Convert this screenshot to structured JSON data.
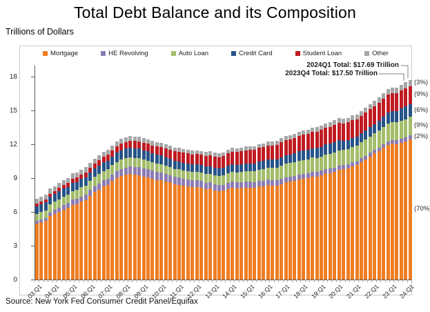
{
  "title": "Total Debt Balance and its Composition",
  "units_label": "Trillions of Dollars",
  "source": "Source: New York Fed Consumer Credit Panel/Equifax",
  "annotations": {
    "latest": "2024Q1 Total: $17.69 Trillion",
    "previous": "2023Q4 Total: $17.50 Trillion"
  },
  "chart_data": {
    "type": "bar",
    "stacked": true,
    "title": "Total Debt Balance and its Composition",
    "ylabel": "Trillions of Dollars",
    "ylim": [
      0,
      18
    ],
    "yticks": [
      0,
      3,
      6,
      9,
      12,
      15,
      18
    ],
    "grid": false,
    "legend_position": "top",
    "bars_per_year": 4,
    "x_tick_labels": [
      "03:Q1",
      "04:Q1",
      "05:Q1",
      "06:Q1",
      "07:Q1",
      "08:Q1",
      "09:Q1",
      "10:Q1",
      "11:Q1",
      "12:Q1",
      "13:Q1",
      "14:Q1",
      "15:Q1",
      "16:Q1",
      "17:Q1",
      "18:Q1",
      "19:Q1",
      "20:Q1",
      "21:Q1",
      "22:Q1",
      "23:Q1",
      "24:Q1"
    ],
    "series": [
      {
        "name": "Mortgage",
        "color": "#EF7D22",
        "pct_label": "(70%)",
        "values": [
          4.94,
          5.08,
          5.18,
          5.66,
          5.84,
          6.02,
          6.21,
          6.36,
          6.64,
          6.7,
          6.9,
          7.07,
          7.43,
          7.76,
          7.98,
          8.24,
          8.38,
          8.74,
          9.0,
          9.18,
          9.29,
          9.37,
          9.29,
          9.26,
          9.15,
          9.06,
          8.94,
          8.85,
          8.83,
          8.72,
          8.61,
          8.45,
          8.4,
          8.32,
          8.28,
          8.2,
          8.19,
          8.15,
          8.03,
          8.06,
          7.93,
          7.84,
          7.88,
          8.05,
          8.17,
          8.1,
          8.13,
          8.17,
          8.17,
          8.12,
          8.26,
          8.25,
          8.37,
          8.36,
          8.35,
          8.48,
          8.63,
          8.69,
          8.74,
          8.88,
          8.94,
          9.0,
          9.14,
          9.12,
          9.24,
          9.41,
          9.44,
          9.56,
          9.71,
          9.78,
          9.86,
          10.04,
          10.16,
          10.44,
          10.67,
          10.93,
          11.18,
          11.39,
          11.67,
          11.92,
          12.04,
          12.01,
          12.14,
          12.25,
          12.44
        ]
      },
      {
        "name": "HE Revolving",
        "color": "#8B7BB4",
        "pct_label": "(2%)",
        "values": [
          0.24,
          0.26,
          0.28,
          0.3,
          0.33,
          0.36,
          0.39,
          0.42,
          0.44,
          0.46,
          0.47,
          0.49,
          0.52,
          0.54,
          0.56,
          0.57,
          0.58,
          0.59,
          0.61,
          0.63,
          0.65,
          0.68,
          0.69,
          0.71,
          0.71,
          0.72,
          0.71,
          0.7,
          0.69,
          0.67,
          0.66,
          0.67,
          0.66,
          0.64,
          0.63,
          0.62,
          0.61,
          0.59,
          0.57,
          0.56,
          0.55,
          0.54,
          0.54,
          0.53,
          0.53,
          0.52,
          0.51,
          0.51,
          0.51,
          0.5,
          0.49,
          0.49,
          0.49,
          0.48,
          0.47,
          0.47,
          0.46,
          0.45,
          0.45,
          0.44,
          0.44,
          0.43,
          0.42,
          0.41,
          0.41,
          0.4,
          0.4,
          0.39,
          0.39,
          0.38,
          0.36,
          0.35,
          0.34,
          0.32,
          0.32,
          0.32,
          0.32,
          0.32,
          0.33,
          0.34,
          0.34,
          0.34,
          0.35,
          0.36,
          0.38
        ]
      },
      {
        "name": "Auto Loan",
        "color": "#A3BD6B",
        "pct_label": "(9%)",
        "values": [
          0.64,
          0.66,
          0.69,
          0.7,
          0.72,
          0.74,
          0.76,
          0.73,
          0.76,
          0.78,
          0.82,
          0.79,
          0.8,
          0.81,
          0.82,
          0.82,
          0.81,
          0.81,
          0.82,
          0.82,
          0.82,
          0.81,
          0.81,
          0.79,
          0.77,
          0.75,
          0.74,
          0.74,
          0.72,
          0.71,
          0.71,
          0.71,
          0.71,
          0.71,
          0.71,
          0.73,
          0.74,
          0.75,
          0.77,
          0.78,
          0.79,
          0.81,
          0.85,
          0.86,
          0.88,
          0.9,
          0.93,
          0.94,
          0.96,
          0.98,
          1.01,
          1.04,
          1.06,
          1.08,
          1.11,
          1.14,
          1.17,
          1.19,
          1.21,
          1.22,
          1.23,
          1.24,
          1.26,
          1.27,
          1.28,
          1.3,
          1.32,
          1.33,
          1.35,
          1.34,
          1.36,
          1.37,
          1.38,
          1.42,
          1.44,
          1.46,
          1.47,
          1.5,
          1.52,
          1.55,
          1.56,
          1.58,
          1.6,
          1.61,
          1.62
        ]
      },
      {
        "name": "Credit Card",
        "color": "#26538A",
        "pct_label": "(6%)",
        "values": [
          0.69,
          0.69,
          0.69,
          0.7,
          0.7,
          0.7,
          0.71,
          0.72,
          0.71,
          0.71,
          0.72,
          0.73,
          0.73,
          0.74,
          0.74,
          0.76,
          0.77,
          0.79,
          0.81,
          0.84,
          0.85,
          0.85,
          0.87,
          0.87,
          0.84,
          0.83,
          0.81,
          0.81,
          0.76,
          0.74,
          0.73,
          0.73,
          0.7,
          0.69,
          0.69,
          0.7,
          0.68,
          0.67,
          0.67,
          0.68,
          0.66,
          0.67,
          0.67,
          0.68,
          0.66,
          0.67,
          0.68,
          0.7,
          0.68,
          0.7,
          0.71,
          0.73,
          0.71,
          0.73,
          0.75,
          0.78,
          0.76,
          0.78,
          0.81,
          0.83,
          0.82,
          0.83,
          0.84,
          0.87,
          0.85,
          0.87,
          0.88,
          0.93,
          0.89,
          0.82,
          0.81,
          0.82,
          0.77,
          0.79,
          0.8,
          0.86,
          0.84,
          0.89,
          0.93,
          0.99,
          0.99,
          1.03,
          1.08,
          1.13,
          1.12
        ]
      },
      {
        "name": "Student Loan",
        "color": "#C11B22",
        "pct_label": "(9%)",
        "values": [
          0.24,
          0.25,
          0.25,
          0.26,
          0.26,
          0.3,
          0.33,
          0.35,
          0.39,
          0.4,
          0.41,
          0.43,
          0.45,
          0.46,
          0.48,
          0.5,
          0.52,
          0.53,
          0.55,
          0.57,
          0.59,
          0.61,
          0.63,
          0.64,
          0.67,
          0.69,
          0.71,
          0.72,
          0.76,
          0.78,
          0.8,
          0.81,
          0.87,
          0.88,
          0.87,
          0.87,
          0.9,
          0.91,
          0.94,
          0.97,
          0.99,
          1.01,
          1.03,
          1.08,
          1.11,
          1.12,
          1.13,
          1.16,
          1.19,
          1.19,
          1.2,
          1.23,
          1.26,
          1.26,
          1.28,
          1.31,
          1.34,
          1.34,
          1.36,
          1.38,
          1.41,
          1.41,
          1.44,
          1.46,
          1.49,
          1.48,
          1.5,
          1.51,
          1.54,
          1.54,
          1.55,
          1.56,
          1.58,
          1.57,
          1.58,
          1.58,
          1.59,
          1.59,
          1.57,
          1.6,
          1.6,
          1.57,
          1.6,
          1.6,
          1.6
        ]
      },
      {
        "name": "Other",
        "color": "#A6A6A6",
        "pct_label": "(3%)",
        "values": [
          0.43,
          0.43,
          0.45,
          0.45,
          0.45,
          0.44,
          0.44,
          0.45,
          0.46,
          0.45,
          0.44,
          0.45,
          0.43,
          0.43,
          0.44,
          0.45,
          0.44,
          0.44,
          0.45,
          0.46,
          0.44,
          0.43,
          0.41,
          0.41,
          0.41,
          0.4,
          0.39,
          0.39,
          0.38,
          0.37,
          0.36,
          0.36,
          0.35,
          0.35,
          0.35,
          0.35,
          0.34,
          0.33,
          0.33,
          0.33,
          0.32,
          0.32,
          0.33,
          0.33,
          0.33,
          0.33,
          0.33,
          0.33,
          0.33,
          0.33,
          0.34,
          0.34,
          0.34,
          0.34,
          0.35,
          0.35,
          0.35,
          0.36,
          0.36,
          0.37,
          0.37,
          0.38,
          0.39,
          0.4,
          0.4,
          0.41,
          0.42,
          0.43,
          0.42,
          0.42,
          0.42,
          0.42,
          0.42,
          0.43,
          0.43,
          0.44,
          0.45,
          0.47,
          0.49,
          0.51,
          0.51,
          0.52,
          0.53,
          0.54,
          0.54
        ]
      }
    ]
  }
}
